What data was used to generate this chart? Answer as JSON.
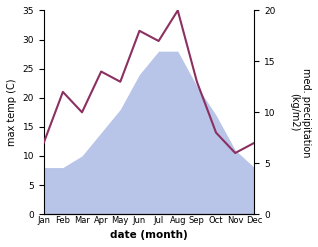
{
  "months": [
    "Jan",
    "Feb",
    "Mar",
    "Apr",
    "May",
    "Jun",
    "Jul",
    "Aug",
    "Sep",
    "Oct",
    "Nov",
    "Dec"
  ],
  "temp": [
    8,
    8,
    10,
    14,
    18,
    24,
    28,
    28,
    22,
    17,
    11,
    8
  ],
  "precip": [
    7,
    12,
    10,
    14,
    13,
    18,
    17,
    20,
    13,
    8,
    6,
    7
  ],
  "temp_fill_color": "#b8c4e8",
  "precip_color": "#8b3060",
  "xlabel": "date (month)",
  "ylabel_left": "max temp (C)",
  "ylabel_right": "med. precipitation\n(kg/m2)",
  "ylim_left": [
    0,
    35
  ],
  "ylim_right": [
    0,
    20
  ],
  "yticks_left": [
    0,
    5,
    10,
    15,
    20,
    25,
    30,
    35
  ],
  "yticks_right": [
    0,
    5,
    10,
    15,
    20
  ],
  "bg_color": "#ffffff"
}
